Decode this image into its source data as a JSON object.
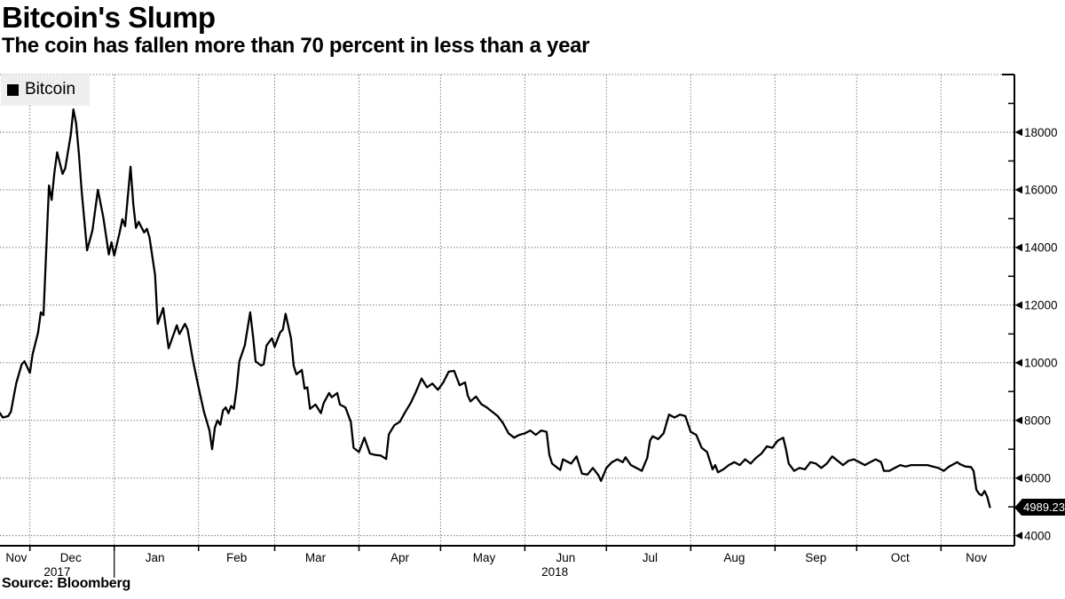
{
  "footer": {
    "source_label": "Source: Bloomberg"
  },
  "chart_data": {
    "type": "line",
    "title": "Bitcoin's Slump",
    "subtitle": "The coin has fallen more than 70 percent in less than a year",
    "xlabel": "",
    "ylabel": "",
    "grid": "dashed",
    "background": "#ffffff",
    "legend_position": "top-left",
    "last_value_label": "4989.23",
    "x_range": [
      "2017-11-20",
      "2018-11-28"
    ],
    "y_axis": {
      "side": "right",
      "min": 3650,
      "max": 20000,
      "major_step": 2000,
      "minor_step": 1000,
      "labeled_ticks": [
        4000,
        6000,
        8000,
        10000,
        12000,
        14000,
        16000,
        18000
      ]
    },
    "x_axis": {
      "tick_dates": [
        "2017-12-01",
        "2018-01-01",
        "2018-02-01",
        "2018-03-01",
        "2018-04-01",
        "2018-05-01",
        "2018-06-01",
        "2018-07-01",
        "2018-08-01",
        "2018-09-01",
        "2018-10-01",
        "2018-11-01"
      ],
      "month_labels": [
        {
          "text": "Nov",
          "date": "2017-11-26"
        },
        {
          "text": "Dec",
          "date": "2017-12-16"
        },
        {
          "text": "Jan",
          "date": "2018-01-16"
        },
        {
          "text": "Feb",
          "date": "2018-02-15"
        },
        {
          "text": "Mar",
          "date": "2018-03-16"
        },
        {
          "text": "Apr",
          "date": "2018-04-16"
        },
        {
          "text": "May",
          "date": "2018-05-17"
        },
        {
          "text": "Jun",
          "date": "2018-06-16"
        },
        {
          "text": "Jul",
          "date": "2018-07-17"
        },
        {
          "text": "Aug",
          "date": "2018-08-17"
        },
        {
          "text": "Sep",
          "date": "2018-09-16"
        },
        {
          "text": "Oct",
          "date": "2018-10-17"
        },
        {
          "text": "Nov",
          "date": "2018-11-14"
        }
      ],
      "year_labels": [
        {
          "text": "2017",
          "date": "2017-12-11"
        },
        {
          "text": "2018",
          "date": "2018-06-12"
        }
      ],
      "year_separator_date": "2018-01-01"
    },
    "series": [
      {
        "name": "Bitcoin",
        "color": "#000000",
        "points": [
          [
            "2017-11-20",
            8250
          ],
          [
            "2017-11-21",
            8100
          ],
          [
            "2017-11-23",
            8150
          ],
          [
            "2017-11-24",
            8300
          ],
          [
            "2017-11-25",
            8800
          ],
          [
            "2017-11-26",
            9300
          ],
          [
            "2017-11-28",
            9950
          ],
          [
            "2017-11-29",
            10050
          ],
          [
            "2017-12-01",
            9650
          ],
          [
            "2017-12-02",
            10300
          ],
          [
            "2017-12-04",
            11050
          ],
          [
            "2017-12-05",
            11750
          ],
          [
            "2017-12-06",
            11650
          ],
          [
            "2017-12-08",
            16150
          ],
          [
            "2017-12-09",
            15650
          ],
          [
            "2017-12-10",
            16600
          ],
          [
            "2017-12-11",
            17300
          ],
          [
            "2017-12-13",
            16550
          ],
          [
            "2017-12-14",
            16750
          ],
          [
            "2017-12-16",
            17900
          ],
          [
            "2017-12-17",
            18790
          ],
          [
            "2017-12-18",
            18300
          ],
          [
            "2017-12-19",
            17250
          ],
          [
            "2017-12-20",
            16000
          ],
          [
            "2017-12-22",
            13900
          ],
          [
            "2017-12-24",
            14600
          ],
          [
            "2017-12-26",
            16000
          ],
          [
            "2017-12-28",
            15050
          ],
          [
            "2017-12-30",
            13760
          ],
          [
            "2017-12-31",
            14180
          ],
          [
            "2018-01-01",
            13720
          ],
          [
            "2018-01-03",
            14520
          ],
          [
            "2018-01-04",
            14980
          ],
          [
            "2018-01-05",
            14740
          ],
          [
            "2018-01-07",
            16800
          ],
          [
            "2018-01-08",
            15500
          ],
          [
            "2018-01-09",
            14680
          ],
          [
            "2018-01-10",
            14890
          ],
          [
            "2018-01-12",
            14520
          ],
          [
            "2018-01-13",
            14650
          ],
          [
            "2018-01-14",
            14340
          ],
          [
            "2018-01-16",
            13050
          ],
          [
            "2018-01-17",
            11350
          ],
          [
            "2018-01-19",
            11900
          ],
          [
            "2018-01-21",
            10500
          ],
          [
            "2018-01-24",
            11300
          ],
          [
            "2018-01-25",
            11000
          ],
          [
            "2018-01-27",
            11350
          ],
          [
            "2018-01-28",
            11150
          ],
          [
            "2018-01-30",
            10050
          ],
          [
            "2018-02-01",
            9150
          ],
          [
            "2018-02-03",
            8300
          ],
          [
            "2018-02-05",
            7650
          ],
          [
            "2018-02-06",
            7000
          ],
          [
            "2018-02-07",
            7750
          ],
          [
            "2018-02-08",
            8000
          ],
          [
            "2018-02-09",
            7850
          ],
          [
            "2018-02-10",
            8350
          ],
          [
            "2018-02-11",
            8450
          ],
          [
            "2018-02-12",
            8250
          ],
          [
            "2018-02-13",
            8500
          ],
          [
            "2018-02-14",
            8400
          ],
          [
            "2018-02-15",
            9100
          ],
          [
            "2018-02-16",
            10050
          ],
          [
            "2018-02-18",
            10600
          ],
          [
            "2018-02-20",
            11750
          ],
          [
            "2018-02-21",
            10950
          ],
          [
            "2018-02-22",
            10050
          ],
          [
            "2018-02-24",
            9900
          ],
          [
            "2018-02-25",
            9950
          ],
          [
            "2018-02-26",
            10600
          ],
          [
            "2018-02-28",
            10850
          ],
          [
            "2018-03-01",
            10550
          ],
          [
            "2018-03-03",
            11050
          ],
          [
            "2018-03-04",
            11150
          ],
          [
            "2018-03-05",
            11700
          ],
          [
            "2018-03-07",
            10850
          ],
          [
            "2018-03-08",
            9900
          ],
          [
            "2018-03-09",
            9600
          ],
          [
            "2018-03-11",
            9750
          ],
          [
            "2018-03-12",
            9100
          ],
          [
            "2018-03-13",
            9150
          ],
          [
            "2018-03-14",
            8400
          ],
          [
            "2018-03-16",
            8550
          ],
          [
            "2018-03-18",
            8250
          ],
          [
            "2018-03-19",
            8600
          ],
          [
            "2018-03-21",
            8950
          ],
          [
            "2018-03-22",
            8800
          ],
          [
            "2018-03-24",
            8950
          ],
          [
            "2018-03-25",
            8550
          ],
          [
            "2018-03-27",
            8450
          ],
          [
            "2018-03-29",
            7950
          ],
          [
            "2018-03-30",
            7050
          ],
          [
            "2018-04-01",
            6900
          ],
          [
            "2018-04-03",
            7400
          ],
          [
            "2018-04-05",
            6850
          ],
          [
            "2018-04-07",
            6800
          ],
          [
            "2018-04-09",
            6780
          ],
          [
            "2018-04-11",
            6660
          ],
          [
            "2018-04-12",
            7520
          ],
          [
            "2018-04-14",
            7830
          ],
          [
            "2018-04-16",
            7950
          ],
          [
            "2018-04-18",
            8290
          ],
          [
            "2018-04-20",
            8600
          ],
          [
            "2018-04-22",
            9000
          ],
          [
            "2018-04-24",
            9450
          ],
          [
            "2018-04-26",
            9150
          ],
          [
            "2018-04-28",
            9280
          ],
          [
            "2018-04-30",
            9060
          ],
          [
            "2018-05-02",
            9320
          ],
          [
            "2018-05-04",
            9690
          ],
          [
            "2018-05-06",
            9720
          ],
          [
            "2018-05-08",
            9220
          ],
          [
            "2018-05-10",
            9320
          ],
          [
            "2018-05-11",
            8860
          ],
          [
            "2018-05-12",
            8660
          ],
          [
            "2018-05-14",
            8830
          ],
          [
            "2018-05-16",
            8560
          ],
          [
            "2018-05-18",
            8450
          ],
          [
            "2018-05-20",
            8300
          ],
          [
            "2018-05-22",
            8150
          ],
          [
            "2018-05-24",
            7900
          ],
          [
            "2018-05-26",
            7550
          ],
          [
            "2018-05-28",
            7400
          ],
          [
            "2018-05-30",
            7500
          ],
          [
            "2018-06-01",
            7550
          ],
          [
            "2018-06-03",
            7650
          ],
          [
            "2018-06-05",
            7500
          ],
          [
            "2018-06-07",
            7650
          ],
          [
            "2018-06-09",
            7600
          ],
          [
            "2018-06-10",
            6800
          ],
          [
            "2018-06-11",
            6500
          ],
          [
            "2018-06-13",
            6350
          ],
          [
            "2018-06-14",
            6280
          ],
          [
            "2018-06-15",
            6650
          ],
          [
            "2018-06-17",
            6550
          ],
          [
            "2018-06-18",
            6500
          ],
          [
            "2018-06-20",
            6750
          ],
          [
            "2018-06-22",
            6150
          ],
          [
            "2018-06-24",
            6120
          ],
          [
            "2018-06-26",
            6350
          ],
          [
            "2018-06-28",
            6100
          ],
          [
            "2018-06-29",
            5900
          ],
          [
            "2018-07-01",
            6350
          ],
          [
            "2018-07-03",
            6550
          ],
          [
            "2018-07-05",
            6650
          ],
          [
            "2018-07-07",
            6550
          ],
          [
            "2018-07-08",
            6720
          ],
          [
            "2018-07-10",
            6450
          ],
          [
            "2018-07-12",
            6350
          ],
          [
            "2018-07-14",
            6250
          ],
          [
            "2018-07-16",
            6700
          ],
          [
            "2018-07-17",
            7300
          ],
          [
            "2018-07-18",
            7450
          ],
          [
            "2018-07-20",
            7350
          ],
          [
            "2018-07-22",
            7550
          ],
          [
            "2018-07-24",
            8200
          ],
          [
            "2018-07-26",
            8100
          ],
          [
            "2018-07-28",
            8200
          ],
          [
            "2018-07-30",
            8150
          ],
          [
            "2018-08-01",
            7600
          ],
          [
            "2018-08-03",
            7500
          ],
          [
            "2018-08-05",
            7050
          ],
          [
            "2018-08-07",
            6900
          ],
          [
            "2018-08-09",
            6300
          ],
          [
            "2018-08-10",
            6450
          ],
          [
            "2018-08-11",
            6200
          ],
          [
            "2018-08-13",
            6300
          ],
          [
            "2018-08-15",
            6450
          ],
          [
            "2018-08-17",
            6550
          ],
          [
            "2018-08-19",
            6450
          ],
          [
            "2018-08-21",
            6650
          ],
          [
            "2018-08-23",
            6500
          ],
          [
            "2018-08-25",
            6700
          ],
          [
            "2018-08-27",
            6850
          ],
          [
            "2018-08-29",
            7100
          ],
          [
            "2018-08-31",
            7050
          ],
          [
            "2018-09-02",
            7300
          ],
          [
            "2018-09-04",
            7400
          ],
          [
            "2018-09-05",
            7000
          ],
          [
            "2018-09-06",
            6500
          ],
          [
            "2018-09-08",
            6250
          ],
          [
            "2018-09-10",
            6350
          ],
          [
            "2018-09-12",
            6300
          ],
          [
            "2018-09-14",
            6550
          ],
          [
            "2018-09-16",
            6500
          ],
          [
            "2018-09-18",
            6350
          ],
          [
            "2018-09-20",
            6500
          ],
          [
            "2018-09-22",
            6750
          ],
          [
            "2018-09-24",
            6600
          ],
          [
            "2018-09-26",
            6450
          ],
          [
            "2018-09-28",
            6600
          ],
          [
            "2018-09-30",
            6650
          ],
          [
            "2018-10-02",
            6550
          ],
          [
            "2018-10-04",
            6450
          ],
          [
            "2018-10-06",
            6550
          ],
          [
            "2018-10-08",
            6650
          ],
          [
            "2018-10-10",
            6550
          ],
          [
            "2018-10-11",
            6250
          ],
          [
            "2018-10-13",
            6250
          ],
          [
            "2018-10-15",
            6350
          ],
          [
            "2018-10-17",
            6450
          ],
          [
            "2018-10-19",
            6400
          ],
          [
            "2018-10-21",
            6450
          ],
          [
            "2018-10-23",
            6450
          ],
          [
            "2018-10-25",
            6450
          ],
          [
            "2018-10-27",
            6450
          ],
          [
            "2018-10-29",
            6400
          ],
          [
            "2018-10-31",
            6350
          ],
          [
            "2018-11-01",
            6300
          ],
          [
            "2018-11-02",
            6250
          ],
          [
            "2018-11-04",
            6400
          ],
          [
            "2018-11-05",
            6450
          ],
          [
            "2018-11-07",
            6550
          ],
          [
            "2018-11-08",
            6480
          ],
          [
            "2018-11-10",
            6400
          ],
          [
            "2018-11-12",
            6380
          ],
          [
            "2018-11-13",
            6250
          ],
          [
            "2018-11-14",
            5600
          ],
          [
            "2018-11-15",
            5450
          ],
          [
            "2018-11-16",
            5400
          ],
          [
            "2018-11-17",
            5550
          ],
          [
            "2018-11-18",
            5350
          ],
          [
            "2018-11-19",
            4989.23
          ]
        ]
      }
    ]
  }
}
